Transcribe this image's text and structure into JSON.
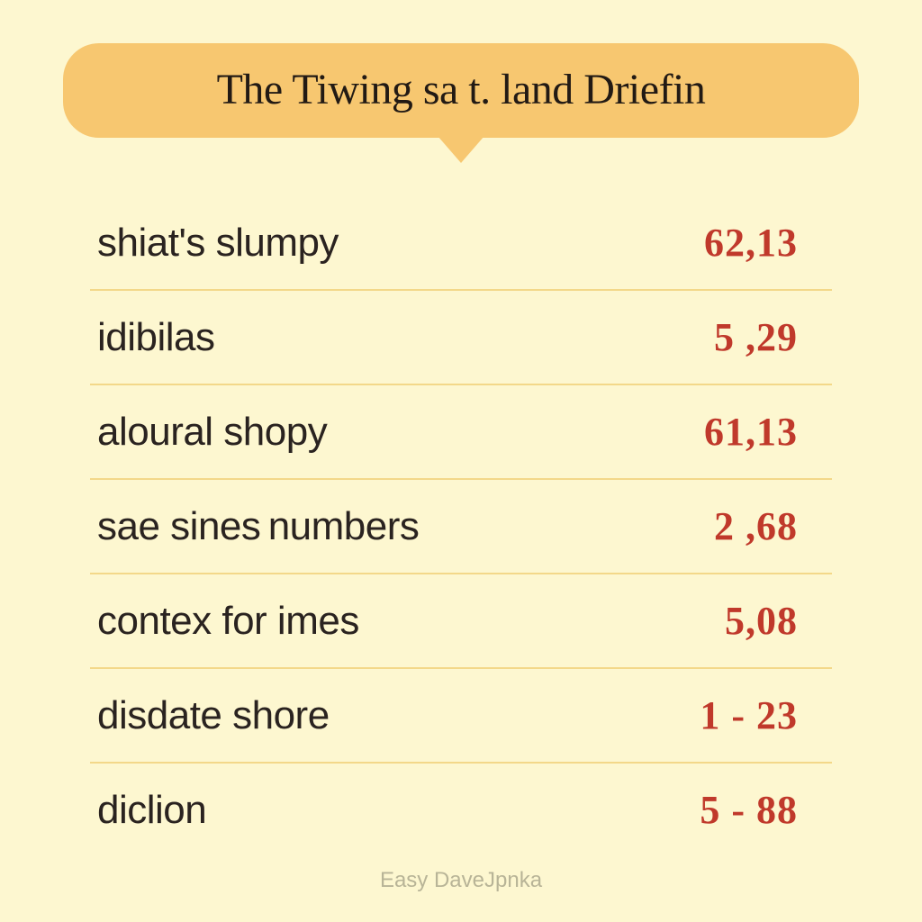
{
  "banner": {
    "title": "The Tiwing sa t. land Driefin",
    "bg_color": "#f7c770",
    "text_color": "#221a14",
    "title_fontsize": 48,
    "border_radius": 40
  },
  "table": {
    "rows": [
      {
        "label": "shiat's slumpy",
        "value": "62,13"
      },
      {
        "label": "idibilas",
        "value": "5 ,29"
      },
      {
        "label": "aloural shopy",
        "value": "61,13"
      },
      {
        "label": "sae sines numbers",
        "value": "2 ,68"
      },
      {
        "label": "contex for imes",
        "value": "5,08"
      },
      {
        "label": "disdate shore",
        "value": "1 - 23"
      },
      {
        "label": "diclion",
        "value": "5 - 88"
      }
    ],
    "label_color": "#2a2320",
    "label_fontsize": 44,
    "value_color": "#c0392b",
    "value_fontsize": 44,
    "divider_color": "#f3d889"
  },
  "background_color": "#fdf7d0",
  "footer": {
    "text": "Easy DaveJpnka",
    "color": "#b8b497",
    "fontsize": 24
  }
}
